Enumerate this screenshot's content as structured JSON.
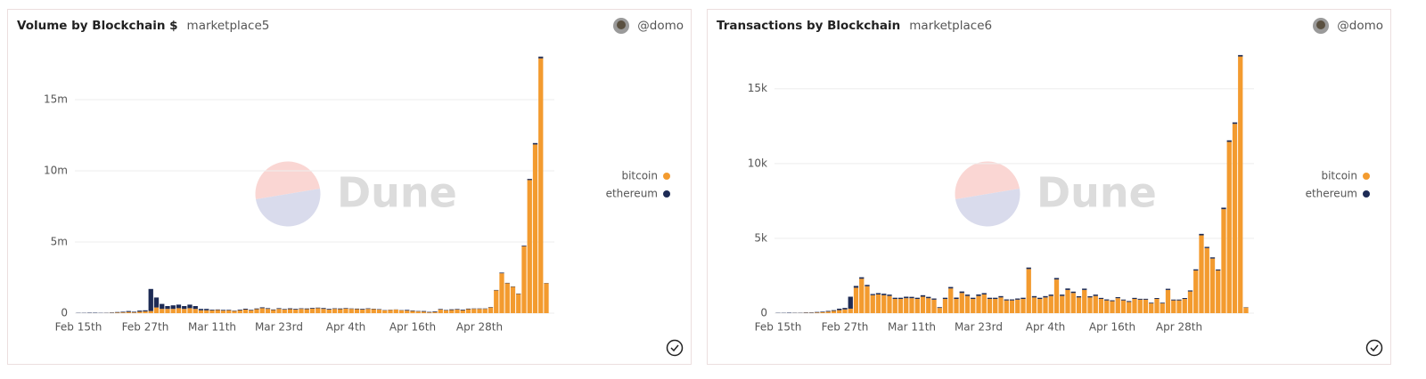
{
  "chart_data": [
    {
      "type": "bar",
      "stacked": true,
      "title": "Volume by Blockchain $",
      "subtitle": "marketplace5",
      "author": "@domo",
      "watermark": "Dune",
      "categories": [
        "Feb 15th",
        null,
        null,
        null,
        null,
        null,
        null,
        null,
        null,
        null,
        null,
        null,
        "Feb 27th",
        null,
        null,
        null,
        null,
        null,
        null,
        null,
        null,
        null,
        null,
        null,
        "Mar 11th",
        null,
        null,
        null,
        null,
        null,
        null,
        null,
        null,
        null,
        null,
        null,
        "Mar 23rd",
        null,
        null,
        null,
        null,
        null,
        null,
        null,
        null,
        null,
        null,
        null,
        "Apr 4th",
        null,
        null,
        null,
        null,
        null,
        null,
        null,
        null,
        null,
        null,
        null,
        "Apr 16th",
        null,
        null,
        null,
        null,
        null,
        null,
        null,
        null,
        null,
        null,
        null,
        "Apr 28th",
        null,
        null,
        null,
        null,
        null,
        null,
        null,
        null,
        null,
        null,
        null,
        null
      ],
      "series": [
        {
          "name": "bitcoin",
          "color": "#f39b2f",
          "values": [
            0,
            0,
            0,
            0,
            0,
            10000,
            20000,
            40000,
            50000,
            80000,
            50000,
            100000,
            120000,
            150000,
            400000,
            300000,
            300000,
            300000,
            350000,
            300000,
            350000,
            300000,
            200000,
            200000,
            200000,
            220000,
            180000,
            200000,
            150000,
            200000,
            250000,
            200000,
            280000,
            350000,
            300000,
            220000,
            300000,
            250000,
            280000,
            250000,
            300000,
            280000,
            320000,
            350000,
            300000,
            250000,
            300000,
            280000,
            320000,
            300000,
            280000,
            250000,
            300000,
            280000,
            250000,
            200000,
            220000,
            250000,
            200000,
            180000,
            150000,
            120000,
            100000,
            50000,
            80000,
            250000,
            200000,
            220000,
            250000,
            200000,
            280000,
            300000,
            300000,
            300000,
            400000,
            1600000,
            2800000,
            2100000,
            1850000,
            1350000,
            4700000,
            9350000,
            11850000,
            17900000,
            2100000
          ]
        },
        {
          "name": "ethereum",
          "color": "#1d2b55",
          "values": [
            20000,
            20000,
            30000,
            30000,
            20000,
            20000,
            30000,
            40000,
            50000,
            70000,
            50000,
            80000,
            80000,
            1550000,
            700000,
            350000,
            200000,
            250000,
            250000,
            200000,
            250000,
            200000,
            100000,
            100000,
            50000,
            40000,
            50000,
            40000,
            30000,
            50000,
            60000,
            40000,
            50000,
            60000,
            50000,
            40000,
            50000,
            40000,
            60000,
            50000,
            40000,
            50000,
            50000,
            40000,
            60000,
            50000,
            40000,
            50000,
            40000,
            30000,
            40000,
            50000,
            40000,
            30000,
            30000,
            20000,
            20000,
            10000,
            20000,
            50000,
            40000,
            30000,
            50000,
            40000,
            50000,
            40000,
            30000,
            50000,
            40000,
            50000,
            40000,
            30000,
            30000,
            30000,
            30000,
            30000,
            50000,
            30000,
            30000,
            30000,
            50000,
            80000,
            100000,
            120000,
            20000
          ]
        }
      ],
      "ylim": [
        0,
        18500000
      ],
      "yticks": [
        0,
        {
          "value": 5000000,
          "label": "5m"
        },
        {
          "value": 10000000,
          "label": "10m"
        },
        {
          "value": 15000000,
          "label": "15m"
        }
      ],
      "grid": true,
      "legend": "right"
    },
    {
      "type": "bar",
      "stacked": true,
      "title": "Transactions by Blockchain",
      "subtitle": "marketplace6",
      "author": "@domo",
      "watermark": "Dune",
      "categories": [
        "Feb 15th",
        null,
        null,
        null,
        null,
        null,
        null,
        null,
        null,
        null,
        null,
        null,
        "Feb 27th",
        null,
        null,
        null,
        null,
        null,
        null,
        null,
        null,
        null,
        null,
        null,
        "Mar 11th",
        null,
        null,
        null,
        null,
        null,
        null,
        null,
        null,
        null,
        null,
        null,
        "Mar 23rd",
        null,
        null,
        null,
        null,
        null,
        null,
        null,
        null,
        null,
        null,
        null,
        "Apr 4th",
        null,
        null,
        null,
        null,
        null,
        null,
        null,
        null,
        null,
        null,
        null,
        "Apr 16th",
        null,
        null,
        null,
        null,
        null,
        null,
        null,
        null,
        null,
        null,
        null,
        "Apr 28th",
        null,
        null,
        null,
        null,
        null,
        null,
        null,
        null,
        null,
        null,
        null,
        null
      ],
      "series": [
        {
          "name": "bitcoin",
          "color": "#f39b2f",
          "values": [
            0,
            0,
            0,
            10,
            10,
            20,
            20,
            40,
            60,
            100,
            150,
            200,
            250,
            300,
            1700,
            2300,
            1800,
            1200,
            1250,
            1200,
            1150,
            950,
            950,
            1000,
            1000,
            950,
            1100,
            1000,
            900,
            350,
            950,
            1650,
            950,
            1350,
            1150,
            950,
            1150,
            1250,
            950,
            950,
            1050,
            850,
            850,
            900,
            950,
            2950,
            1050,
            950,
            1050,
            1150,
            2250,
            1150,
            1550,
            1350,
            1050,
            1550,
            1050,
            1150,
            950,
            850,
            800,
            1000,
            850,
            750,
            950,
            900,
            900,
            650,
            950,
            650,
            1550,
            850,
            850,
            950,
            1450,
            2850,
            5200,
            4350,
            3650,
            2850,
            6950,
            11450,
            12650,
            17150,
            380
          ]
        },
        {
          "name": "ethereum",
          "color": "#1d2b55",
          "values": [
            20,
            20,
            30,
            20,
            20,
            30,
            30,
            40,
            40,
            50,
            50,
            100,
            100,
            800,
            120,
            100,
            90,
            80,
            90,
            100,
            90,
            80,
            80,
            100,
            90,
            80,
            100,
            90,
            80,
            50,
            80,
            100,
            90,
            100,
            90,
            80,
            100,
            90,
            80,
            80,
            90,
            70,
            70,
            80,
            80,
            100,
            90,
            80,
            90,
            90,
            100,
            90,
            100,
            90,
            80,
            90,
            80,
            90,
            70,
            70,
            60,
            70,
            60,
            60,
            70,
            60,
            60,
            50,
            60,
            50,
            80,
            60,
            60,
            60,
            70,
            80,
            100,
            80,
            80,
            70,
            100,
            100,
            100,
            100,
            20
          ]
        }
      ],
      "ylim": [
        0,
        17600
      ],
      "yticks": [
        0,
        {
          "value": 5000,
          "label": "5k"
        },
        {
          "value": 10000,
          "label": "10k"
        },
        {
          "value": 15000,
          "label": "15k"
        }
      ],
      "grid": true,
      "legend": "right"
    }
  ]
}
